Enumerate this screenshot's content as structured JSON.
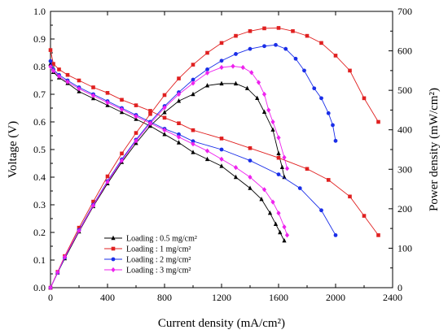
{
  "chart_data": {
    "type": "line",
    "x": {
      "label": "Current density (mA/cm²)",
      "ticks": [
        "0",
        "400",
        "800",
        "1200",
        "1600",
        "2000",
        "2400"
      ],
      "lim": [
        0,
        2400
      ]
    },
    "y_left": {
      "label": "Voltage (V)",
      "ticks": [
        "0.0",
        "0.1",
        "0.2",
        "0.3",
        "0.4",
        "0.5",
        "0.6",
        "0.7",
        "0.8",
        "0.9",
        "1.0"
      ],
      "lim": [
        0,
        1.0
      ]
    },
    "y_right": {
      "label": "Power density (mW/cm²)",
      "ticks": [
        "0",
        "100",
        "200",
        "300",
        "400",
        "500",
        "600",
        "700"
      ],
      "lim": [
        0,
        700
      ]
    },
    "legend": {
      "position": "lower-left"
    },
    "series": [
      {
        "name": "Loading : 0.5 mg/cm²",
        "color": "#000000",
        "marker": "triangle",
        "voltage": [
          [
            0,
            0.81
          ],
          [
            20,
            0.78
          ],
          [
            60,
            0.76
          ],
          [
            120,
            0.74
          ],
          [
            200,
            0.71
          ],
          [
            300,
            0.685
          ],
          [
            400,
            0.66
          ],
          [
            500,
            0.635
          ],
          [
            600,
            0.61
          ],
          [
            700,
            0.585
          ],
          [
            800,
            0.555
          ],
          [
            900,
            0.525
          ],
          [
            1000,
            0.49
          ],
          [
            1100,
            0.465
          ],
          [
            1200,
            0.44
          ],
          [
            1300,
            0.4
          ],
          [
            1400,
            0.36
          ],
          [
            1480,
            0.32
          ],
          [
            1540,
            0.27
          ],
          [
            1580,
            0.23
          ],
          [
            1610,
            0.2
          ],
          [
            1640,
            0.17
          ]
        ],
        "power": [
          [
            0,
            0
          ],
          [
            50,
            38
          ],
          [
            100,
            74
          ],
          [
            200,
            142
          ],
          [
            300,
            206
          ],
          [
            400,
            264
          ],
          [
            500,
            318
          ],
          [
            600,
            366
          ],
          [
            700,
            410
          ],
          [
            800,
            444
          ],
          [
            900,
            473
          ],
          [
            1000,
            490
          ],
          [
            1100,
            512
          ],
          [
            1200,
            517
          ],
          [
            1300,
            517
          ],
          [
            1380,
            505
          ],
          [
            1450,
            480
          ],
          [
            1500,
            445
          ],
          [
            1560,
            400
          ],
          [
            1600,
            340
          ],
          [
            1625,
            305
          ],
          [
            1640,
            280
          ]
        ]
      },
      {
        "name": "Loading : 1 mg/cm²",
        "color": "#e02020",
        "marker": "square",
        "voltage": [
          [
            0,
            0.86
          ],
          [
            20,
            0.81
          ],
          [
            60,
            0.79
          ],
          [
            120,
            0.77
          ],
          [
            200,
            0.75
          ],
          [
            300,
            0.725
          ],
          [
            400,
            0.705
          ],
          [
            500,
            0.68
          ],
          [
            600,
            0.66
          ],
          [
            700,
            0.64
          ],
          [
            800,
            0.615
          ],
          [
            900,
            0.595
          ],
          [
            1000,
            0.57
          ],
          [
            1200,
            0.54
          ],
          [
            1400,
            0.505
          ],
          [
            1600,
            0.47
          ],
          [
            1800,
            0.43
          ],
          [
            1950,
            0.39
          ],
          [
            2100,
            0.33
          ],
          [
            2200,
            0.26
          ],
          [
            2300,
            0.19
          ]
        ],
        "power": [
          [
            0,
            0
          ],
          [
            50,
            40
          ],
          [
            100,
            80
          ],
          [
            200,
            152
          ],
          [
            300,
            218
          ],
          [
            400,
            282
          ],
          [
            500,
            340
          ],
          [
            600,
            392
          ],
          [
            700,
            440
          ],
          [
            800,
            488
          ],
          [
            900,
            530
          ],
          [
            1000,
            565
          ],
          [
            1100,
            595
          ],
          [
            1200,
            620
          ],
          [
            1300,
            638
          ],
          [
            1400,
            650
          ],
          [
            1500,
            657
          ],
          [
            1600,
            658
          ],
          [
            1700,
            650
          ],
          [
            1800,
            638
          ],
          [
            1900,
            620
          ],
          [
            2000,
            588
          ],
          [
            2100,
            550
          ],
          [
            2200,
            480
          ],
          [
            2300,
            420
          ]
        ]
      },
      {
        "name": "Loading : 2 mg/cm²",
        "color": "#1a2ee8",
        "marker": "circle",
        "voltage": [
          [
            0,
            0.82
          ],
          [
            20,
            0.79
          ],
          [
            60,
            0.77
          ],
          [
            120,
            0.75
          ],
          [
            200,
            0.725
          ],
          [
            300,
            0.7
          ],
          [
            400,
            0.675
          ],
          [
            500,
            0.65
          ],
          [
            600,
            0.625
          ],
          [
            700,
            0.6
          ],
          [
            800,
            0.575
          ],
          [
            900,
            0.555
          ],
          [
            1000,
            0.53
          ],
          [
            1200,
            0.5
          ],
          [
            1400,
            0.46
          ],
          [
            1600,
            0.41
          ],
          [
            1750,
            0.36
          ],
          [
            1900,
            0.28
          ],
          [
            2000,
            0.19
          ]
        ],
        "power": [
          [
            0,
            0
          ],
          [
            50,
            38
          ],
          [
            100,
            76
          ],
          [
            200,
            146
          ],
          [
            300,
            210
          ],
          [
            400,
            270
          ],
          [
            500,
            325
          ],
          [
            600,
            375
          ],
          [
            700,
            420
          ],
          [
            800,
            460
          ],
          [
            900,
            495
          ],
          [
            1000,
            527
          ],
          [
            1100,
            553
          ],
          [
            1200,
            575
          ],
          [
            1300,
            592
          ],
          [
            1400,
            605
          ],
          [
            1500,
            612
          ],
          [
            1580,
            615
          ],
          [
            1650,
            605
          ],
          [
            1720,
            580
          ],
          [
            1780,
            550
          ],
          [
            1850,
            505
          ],
          [
            1900,
            480
          ],
          [
            1950,
            442
          ],
          [
            1980,
            412
          ],
          [
            2000,
            372
          ]
        ]
      },
      {
        "name": "Loading : 3 mg/cm²",
        "color": "#ee22ee",
        "marker": "diamond",
        "voltage": [
          [
            0,
            0.8
          ],
          [
            20,
            0.785
          ],
          [
            60,
            0.765
          ],
          [
            120,
            0.745
          ],
          [
            200,
            0.72
          ],
          [
            300,
            0.695
          ],
          [
            400,
            0.67
          ],
          [
            500,
            0.645
          ],
          [
            600,
            0.62
          ],
          [
            700,
            0.595
          ],
          [
            800,
            0.57
          ],
          [
            900,
            0.545
          ],
          [
            1000,
            0.52
          ],
          [
            1100,
            0.495
          ],
          [
            1200,
            0.465
          ],
          [
            1300,
            0.435
          ],
          [
            1400,
            0.4
          ],
          [
            1500,
            0.355
          ],
          [
            1560,
            0.31
          ],
          [
            1600,
            0.27
          ],
          [
            1640,
            0.22
          ],
          [
            1660,
            0.19
          ]
        ],
        "power": [
          [
            0,
            0
          ],
          [
            50,
            39
          ],
          [
            100,
            78
          ],
          [
            200,
            144
          ],
          [
            300,
            208
          ],
          [
            400,
            268
          ],
          [
            500,
            322
          ],
          [
            600,
            372
          ],
          [
            700,
            416
          ],
          [
            800,
            456
          ],
          [
            900,
            490
          ],
          [
            1000,
            518
          ],
          [
            1100,
            544
          ],
          [
            1200,
            558
          ],
          [
            1280,
            561
          ],
          [
            1350,
            558
          ],
          [
            1410,
            545
          ],
          [
            1460,
            520
          ],
          [
            1500,
            490
          ],
          [
            1530,
            450
          ],
          [
            1560,
            420
          ],
          [
            1600,
            380
          ],
          [
            1640,
            330
          ],
          [
            1660,
            302
          ]
        ]
      }
    ]
  }
}
